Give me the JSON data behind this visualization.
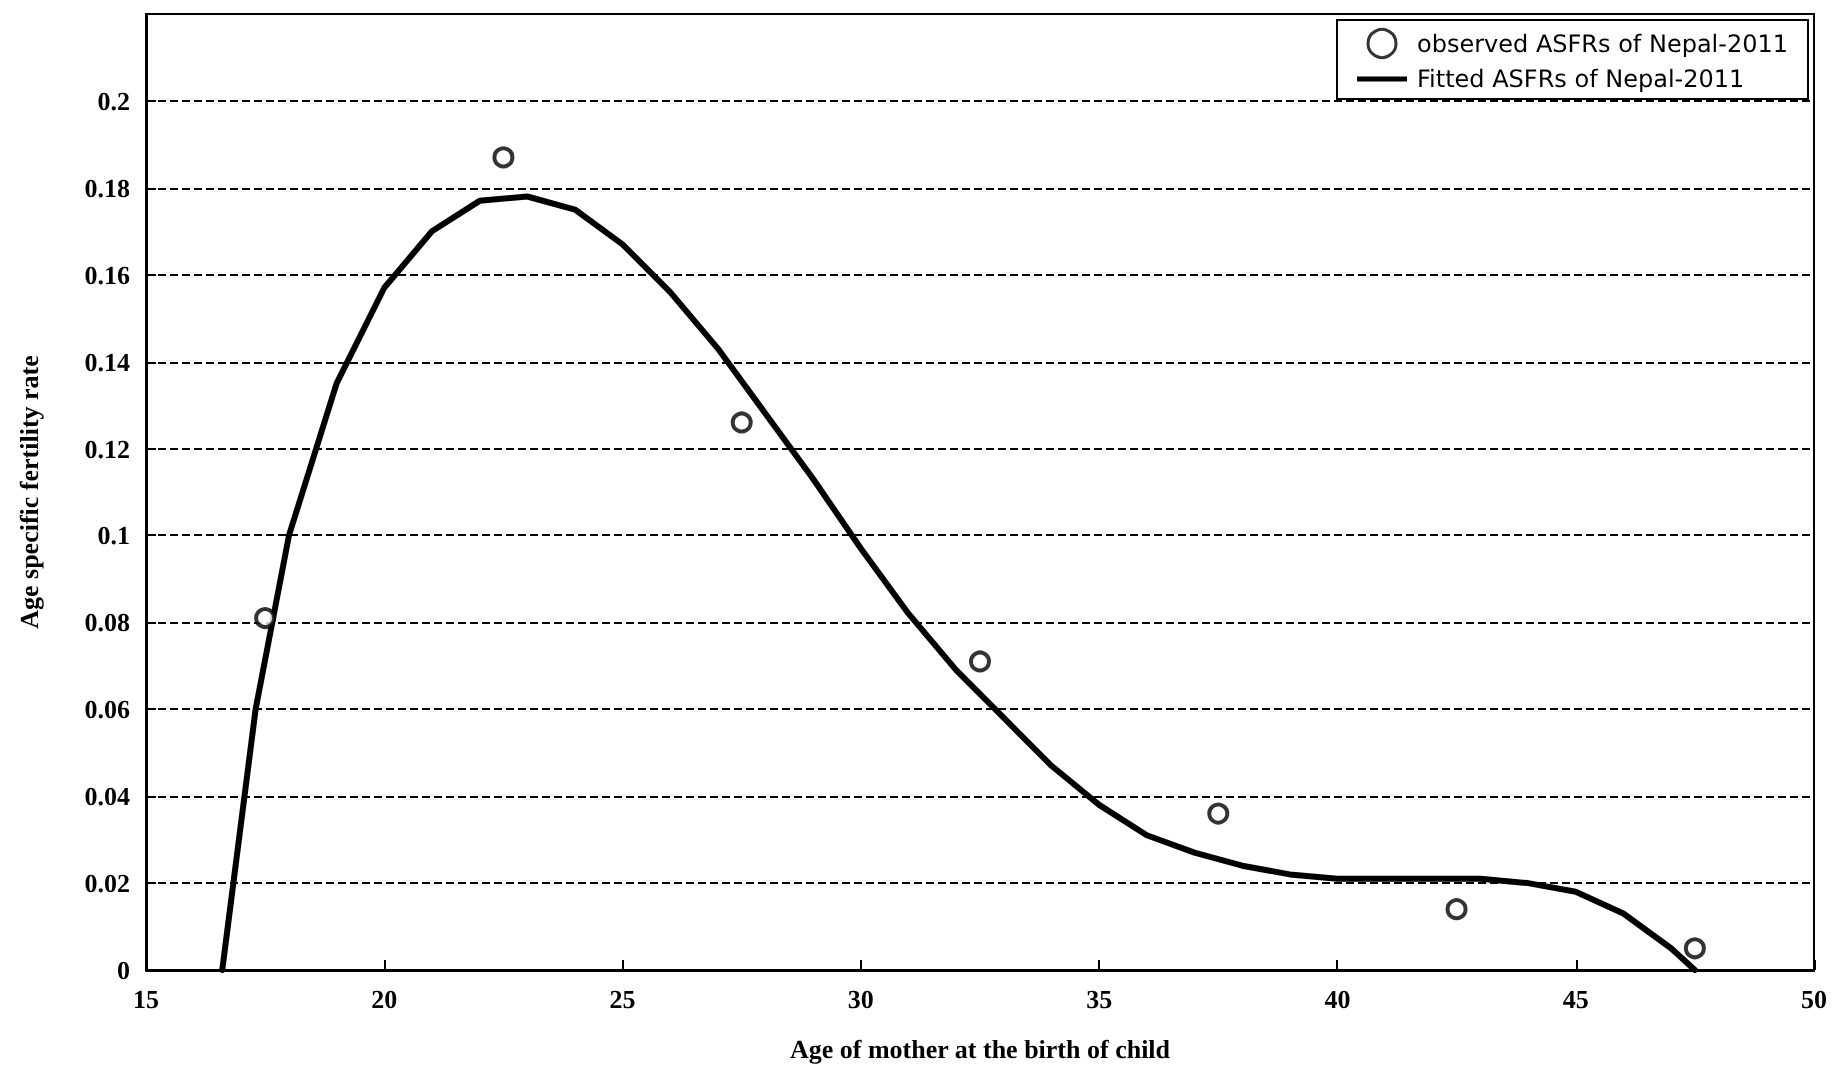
{
  "chart_data": {
    "type": "line",
    "xlabel": "Age of mother at the birth of child",
    "ylabel": "Age specific fertility rate",
    "xlim": [
      15,
      50
    ],
    "xticks": [
      15,
      20,
      25,
      30,
      35,
      40,
      45,
      50
    ],
    "ylim": [
      0,
      0.22
    ],
    "yticks": [
      0,
      0.02,
      0.04,
      0.06,
      0.08,
      0.1,
      0.12,
      0.14,
      0.16,
      0.18,
      0.2
    ],
    "grid": "y",
    "legend": "top right",
    "series": [
      {
        "name": "observed ASFRs of Nepal-2011",
        "type": "scatter",
        "marker": "circle",
        "color": "#000000",
        "x": [
          17.5,
          22.5,
          27.5,
          32.5,
          37.5,
          42.5,
          47.5
        ],
        "values": [
          0.081,
          0.187,
          0.126,
          0.071,
          0.036,
          0.014,
          0.005
        ]
      },
      {
        "name": "Fitted ASFRs of Nepal-2011",
        "marker": "none",
        "line_style": "solid",
        "color": "#000000",
        "x": [
          16.6,
          17.3,
          18,
          19,
          20,
          21,
          22,
          23,
          24,
          25,
          26,
          27,
          28,
          29,
          30,
          31,
          32,
          33,
          34,
          35,
          36,
          37,
          38,
          39,
          40,
          41,
          42,
          43,
          44,
          45,
          46,
          47,
          47.5
        ],
        "values": [
          0,
          0.06,
          0.1,
          0.135,
          0.157,
          0.17,
          0.177,
          0.178,
          0.175,
          0.167,
          0.156,
          0.143,
          0.128,
          0.113,
          0.097,
          0.082,
          0.069,
          0.058,
          0.047,
          0.038,
          0.031,
          0.027,
          0.024,
          0.022,
          0.021,
          0.021,
          0.021,
          0.021,
          0.02,
          0.018,
          0.013,
          0.005,
          0
        ]
      }
    ]
  }
}
